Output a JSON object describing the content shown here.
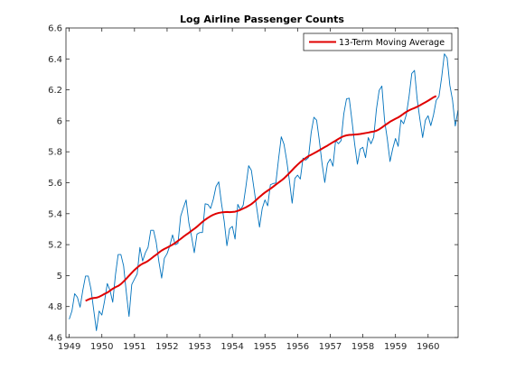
{
  "chart_data": {
    "type": "line",
    "title": "Log Airline Passenger Counts",
    "xlabel": "",
    "ylabel": "",
    "xlim": [
      1948.9,
      1960.92
    ],
    "ylim": [
      4.6,
      6.6
    ],
    "x_ticks": [
      1949,
      1950,
      1951,
      1952,
      1953,
      1954,
      1955,
      1956,
      1957,
      1958,
      1959,
      1960
    ],
    "x_tick_labels": [
      "1949",
      "1950",
      "1951",
      "1952",
      "1953",
      "1954",
      "1955",
      "1956",
      "1957",
      "1958",
      "1959",
      "1960"
    ],
    "y_ticks": [
      4.6,
      4.8,
      5.0,
      5.2,
      5.4,
      5.6,
      5.8,
      6.0,
      6.2,
      6.4,
      6.6
    ],
    "y_tick_labels": [
      "4.6",
      "4.8",
      "5",
      "5.2",
      "5.4",
      "5.6",
      "5.8",
      "6",
      "6.2",
      "6.4",
      "6.6"
    ],
    "grid": false,
    "legend_position": "top-right",
    "series": [
      {
        "name": "",
        "color": "#0072BD",
        "x_start": 1949.0,
        "x_step": 0.08333,
        "values": [
          4.718,
          4.771,
          4.883,
          4.86,
          4.796,
          4.905,
          4.997,
          4.997,
          4.913,
          4.779,
          4.644,
          4.771,
          4.745,
          4.836,
          4.949,
          4.905,
          4.828,
          5.004,
          5.136,
          5.136,
          5.063,
          4.891,
          4.736,
          4.942,
          4.977,
          5.011,
          5.182,
          5.094,
          5.147,
          5.182,
          5.293,
          5.293,
          5.215,
          5.088,
          4.984,
          5.112,
          5.142,
          5.193,
          5.263,
          5.199,
          5.209,
          5.384,
          5.439,
          5.489,
          5.342,
          5.252,
          5.148,
          5.268,
          5.278,
          5.278,
          5.464,
          5.46,
          5.434,
          5.493,
          5.576,
          5.606,
          5.468,
          5.352,
          5.193,
          5.303,
          5.318,
          5.236,
          5.46,
          5.425,
          5.455,
          5.576,
          5.71,
          5.68,
          5.557,
          5.434,
          5.313,
          5.434,
          5.489,
          5.451,
          5.587,
          5.595,
          5.598,
          5.753,
          5.897,
          5.849,
          5.743,
          5.613,
          5.468,
          5.628,
          5.649,
          5.624,
          5.759,
          5.746,
          5.762,
          5.924,
          6.023,
          6.004,
          5.872,
          5.724,
          5.602,
          5.724,
          5.753,
          5.707,
          5.875,
          5.852,
          5.872,
          6.045,
          6.142,
          6.146,
          6.001,
          5.849,
          5.72,
          5.817,
          5.829,
          5.762,
          5.892,
          5.852,
          5.894,
          6.075,
          6.196,
          6.225,
          6.001,
          5.883,
          5.737,
          5.82,
          5.886,
          5.835,
          6.006,
          5.981,
          6.04,
          6.157,
          6.306,
          6.326,
          6.138,
          6.009,
          5.892,
          6.004,
          6.033,
          5.969,
          6.038,
          6.133,
          6.157,
          6.282,
          6.433,
          6.407,
          6.23,
          6.133,
          5.966,
          6.068
        ]
      },
      {
        "name": "13-Term Moving Average",
        "color": "#E00000",
        "x_start": 1949.5,
        "x_step": 0.08333,
        "values": [
          4.837,
          4.845,
          4.852,
          4.855,
          4.857,
          4.863,
          4.872,
          4.882,
          4.89,
          4.902,
          4.915,
          4.925,
          4.933,
          4.945,
          4.962,
          4.98,
          4.999,
          5.018,
          5.036,
          5.052,
          5.066,
          5.077,
          5.085,
          5.095,
          5.108,
          5.122,
          5.135,
          5.149,
          5.162,
          5.172,
          5.181,
          5.19,
          5.2,
          5.211,
          5.224,
          5.237,
          5.251,
          5.264,
          5.276,
          5.29,
          5.302,
          5.316,
          5.332,
          5.347,
          5.361,
          5.373,
          5.384,
          5.393,
          5.4,
          5.405,
          5.408,
          5.41,
          5.411,
          5.41,
          5.411,
          5.413,
          5.418,
          5.425,
          5.433,
          5.441,
          5.451,
          5.462,
          5.476,
          5.492,
          5.508,
          5.523,
          5.537,
          5.549,
          5.561,
          5.574,
          5.588,
          5.601,
          5.614,
          5.628,
          5.645,
          5.663,
          5.681,
          5.7,
          5.717,
          5.733,
          5.747,
          5.76,
          5.772,
          5.781,
          5.79,
          5.8,
          5.81,
          5.82,
          5.83,
          5.84,
          5.851,
          5.862,
          5.872,
          5.883,
          5.893,
          5.901,
          5.906,
          5.909,
          5.91,
          5.911,
          5.913,
          5.915,
          5.918,
          5.921,
          5.924,
          5.928,
          5.931,
          5.936,
          5.945,
          5.957,
          5.97,
          5.982,
          5.994,
          6.004,
          6.013,
          6.022,
          6.033,
          6.046,
          6.058,
          6.068,
          6.076,
          6.083,
          6.091,
          6.1,
          6.11,
          6.12,
          6.13,
          6.141,
          6.152,
          6.16
        ]
      }
    ]
  }
}
